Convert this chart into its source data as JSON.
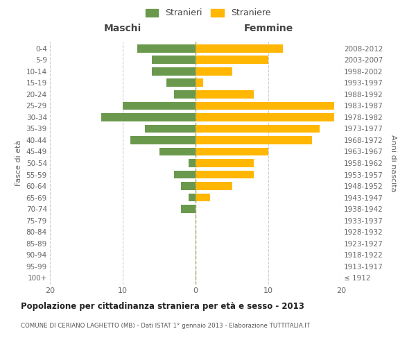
{
  "age_groups": [
    "100+",
    "95-99",
    "90-94",
    "85-89",
    "80-84",
    "75-79",
    "70-74",
    "65-69",
    "60-64",
    "55-59",
    "50-54",
    "45-49",
    "40-44",
    "35-39",
    "30-34",
    "25-29",
    "20-24",
    "15-19",
    "10-14",
    "5-9",
    "0-4"
  ],
  "birth_years": [
    "≤ 1912",
    "1913-1917",
    "1918-1922",
    "1923-1927",
    "1928-1932",
    "1933-1937",
    "1938-1942",
    "1943-1947",
    "1948-1952",
    "1953-1957",
    "1958-1962",
    "1963-1967",
    "1968-1972",
    "1973-1977",
    "1978-1982",
    "1983-1987",
    "1988-1992",
    "1993-1997",
    "1998-2002",
    "2003-2007",
    "2008-2012"
  ],
  "maschi": [
    0,
    0,
    0,
    0,
    0,
    0,
    2,
    1,
    2,
    3,
    1,
    5,
    9,
    7,
    13,
    10,
    3,
    4,
    6,
    6,
    8
  ],
  "femmine": [
    0,
    0,
    0,
    0,
    0,
    0,
    0,
    2,
    5,
    8,
    8,
    10,
    16,
    17,
    19,
    19,
    8,
    1,
    5,
    10,
    12
  ],
  "maschi_color": "#6a994e",
  "femmine_color": "#ffb703",
  "background_color": "#ffffff",
  "grid_color": "#cccccc",
  "title": "Popolazione per cittadinanza straniera per età e sesso - 2013",
  "subtitle": "COMUNE DI CERIANO LAGHETTO (MB) - Dati ISTAT 1° gennaio 2013 - Elaborazione TUTTITALIA.IT",
  "ylabel_left": "Fasce di età",
  "ylabel_right": "Anni di nascita",
  "xlabel_left": "Maschi",
  "xlabel_right": "Femmine",
  "legend_maschi": "Stranieri",
  "legend_femmine": "Straniere",
  "xlim": 20
}
